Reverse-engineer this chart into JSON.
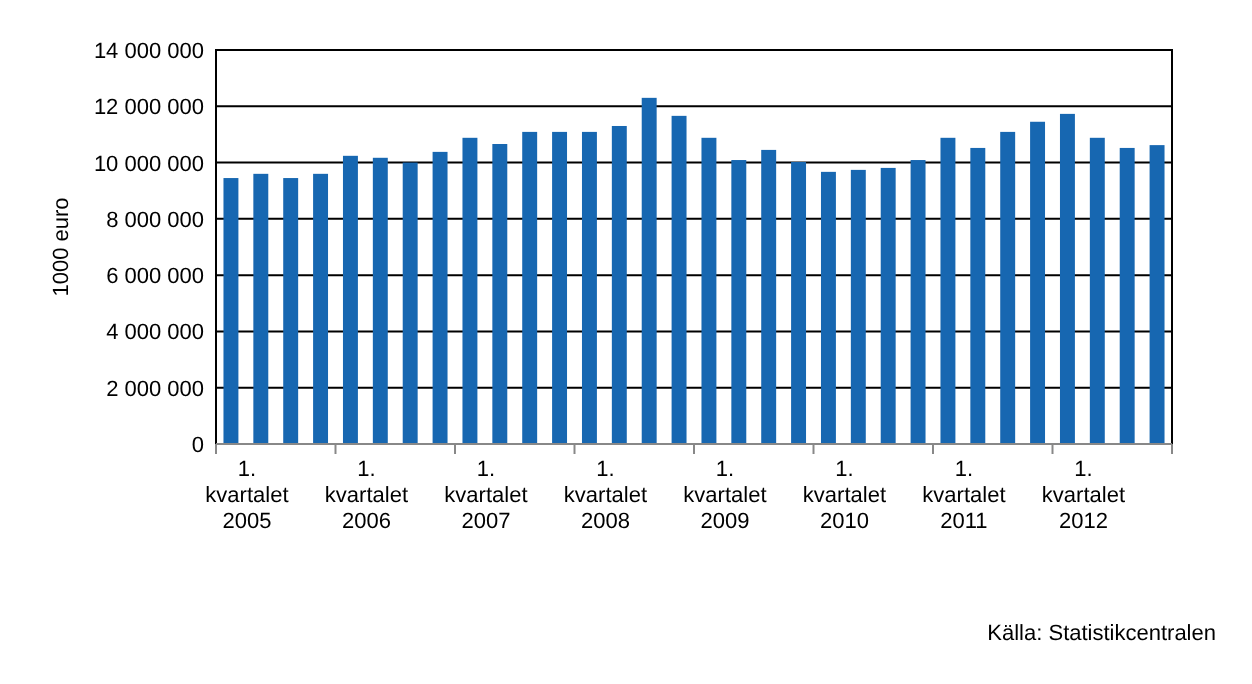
{
  "chart_data": {
    "type": "bar",
    "ylabel": "1000 euro",
    "categories": [
      "1. kvartalet 2005",
      null,
      null,
      null,
      "1. kvartalet 2006",
      null,
      null,
      null,
      "1. kvartalet 2007",
      null,
      null,
      null,
      "1. kvartalet 2008",
      null,
      null,
      null,
      "1. kvartalet 2009",
      null,
      null,
      null,
      "1. kvartalet 2010",
      null,
      null,
      null,
      "1. kvartalet 2011",
      null,
      null,
      null,
      "1. kvartalet 2012",
      null,
      null,
      null
    ],
    "values": [
      9450000,
      9600000,
      9450000,
      9600000,
      10240000,
      10170000,
      10000000,
      10380000,
      10880000,
      10660000,
      11090000,
      11090000,
      11090000,
      11300000,
      12300000,
      11660000,
      10880000,
      10090000,
      10450000,
      10020000,
      9670000,
      9740000,
      9810000,
      10090000,
      10880000,
      10520000,
      11090000,
      11450000,
      11730000,
      10880000,
      10520000,
      10620000
    ],
    "color": "#1767b1",
    "ylim": [
      0,
      14000000
    ],
    "yticks": [
      {
        "value": 0,
        "label": "0"
      },
      {
        "value": 2000000,
        "label": "2 000 000"
      },
      {
        "value": 4000000,
        "label": "4 000 000"
      },
      {
        "value": 6000000,
        "label": "6 000 000"
      },
      {
        "value": 8000000,
        "label": "8 000 000"
      },
      {
        "value": 10000000,
        "label": "10 000 000"
      },
      {
        "value": 12000000,
        "label": "12 000 000"
      },
      {
        "value": 14000000,
        "label": "14 000 000"
      }
    ],
    "grid": "y",
    "annotations": [
      "Källa: Statistikcentralen"
    ]
  }
}
